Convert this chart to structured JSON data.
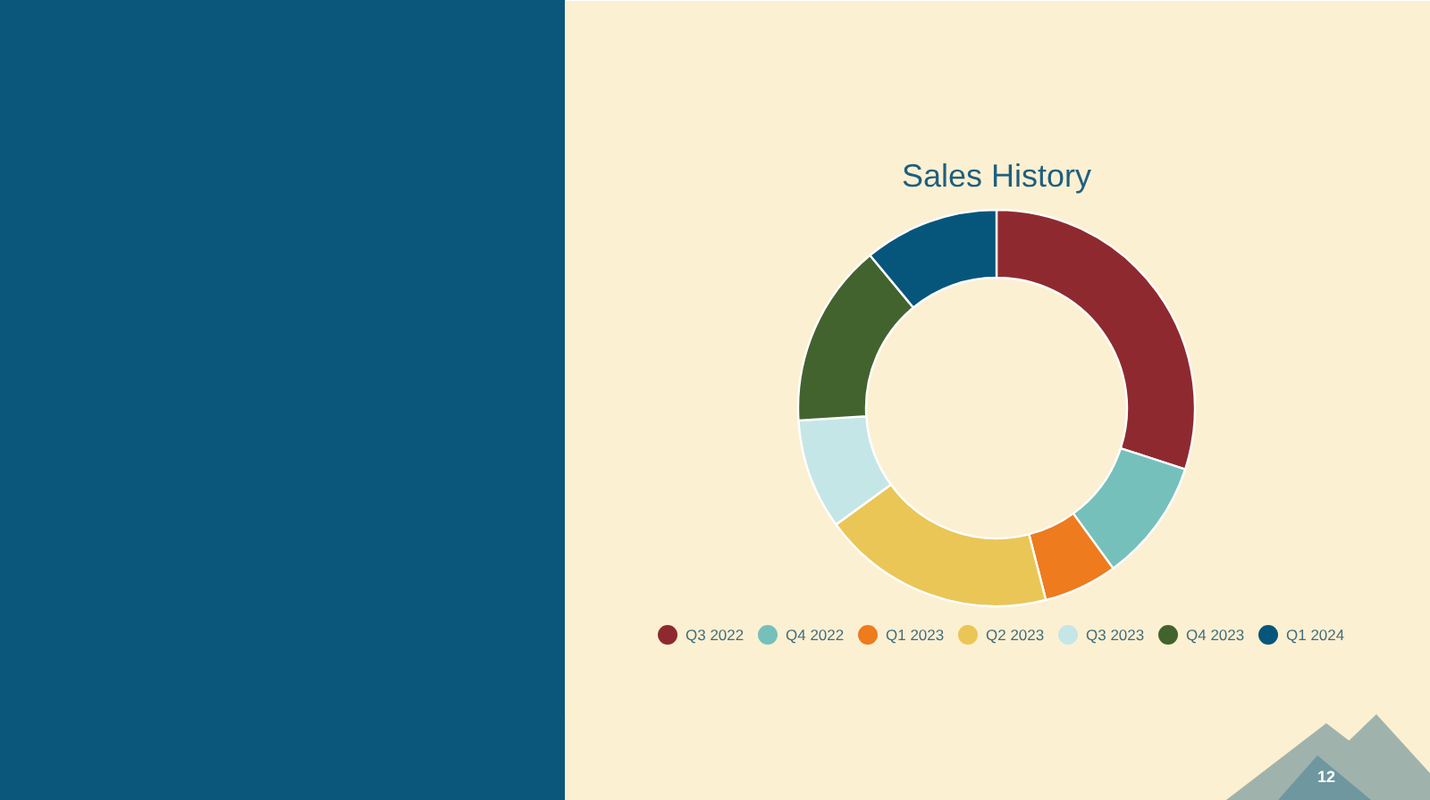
{
  "chart_data": {
    "type": "donut",
    "title": "Sales History",
    "categories": [
      "Q3 2022",
      "Q4 2022",
      "Q1 2023",
      "Q2 2023",
      "Q3 2023",
      "Q4 2023",
      "Q1 2024"
    ],
    "values": [
      30,
      10,
      6,
      19,
      9,
      15,
      11
    ],
    "colors": [
      "#8e2a2f",
      "#76c0bc",
      "#ee7b1e",
      "#eac656",
      "#c5e6e7",
      "#42632e",
      "#06567c"
    ],
    "legend": "bottom",
    "annotations": [
      "12"
    ]
  }
}
